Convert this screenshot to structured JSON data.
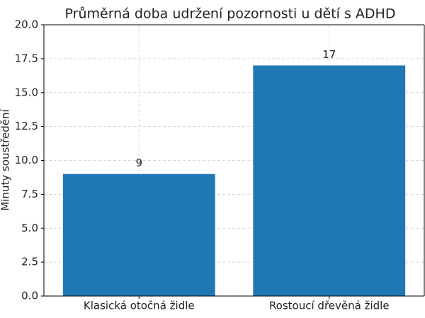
{
  "chart_data": {
    "type": "bar",
    "title": "Průměrná doba udržení pozornosti u dětí s ADHD",
    "y_label": "Minuty soustředění",
    "categories": [
      "Klasická otočná židle",
      "Rostoucí dřevěná židle"
    ],
    "values": [
      9,
      17
    ],
    "color": "#1f77b4",
    "ylim": [
      0,
      20
    ],
    "yticks": [
      {
        "value": 0,
        "label": "0.0"
      },
      2.5,
      {
        "value": 5,
        "label": "5.0"
      },
      7.5,
      {
        "value": 10,
        "label": "10.0"
      },
      12.5,
      {
        "value": 15,
        "label": "15.0"
      },
      17.5,
      {
        "value": 20,
        "label": "20.0"
      }
    ],
    "grid": true
  }
}
